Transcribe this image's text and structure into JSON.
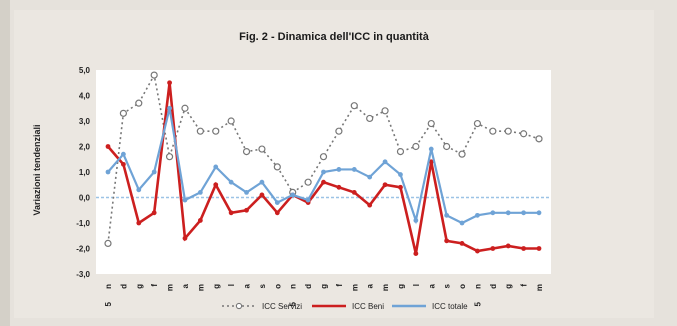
{
  "chart_data": {
    "type": "line",
    "title": "Fig. 2 - Dinamica dell'ICC in quantità",
    "ylabel": "Variazioni tendenziali",
    "xlabel": "",
    "ylim": [
      -3.0,
      5.0
    ],
    "yticks": [
      "-3,0",
      "-2,0",
      "-1,0",
      "0,0",
      "1,0",
      "2,0",
      "3,0",
      "4,0",
      "5,0"
    ],
    "ytick_values": [
      -3,
      -2,
      -1,
      0,
      1,
      2,
      3,
      4,
      5
    ],
    "categories": [
      "n",
      "d",
      "g",
      "f",
      "m",
      "a",
      "m",
      "g",
      "l",
      "a",
      "s",
      "o",
      "n",
      "d",
      "g",
      "f",
      "m",
      "a",
      "m",
      "g",
      "l",
      "a",
      "s",
      "o",
      "n",
      "d",
      "g",
      "f",
      "m"
    ],
    "year_marks": [
      {
        "index": 0,
        "label": "5"
      },
      {
        "index": 12,
        "label": "5"
      },
      {
        "index": 24,
        "label": "5"
      }
    ],
    "grid": false,
    "legend_position": "bottom",
    "series": [
      {
        "name": "ICC Servizi",
        "color": "#777777",
        "style": "dotted",
        "values": [
          -1.8,
          3.3,
          3.7,
          4.8,
          1.6,
          3.5,
          2.6,
          2.6,
          3.0,
          1.8,
          1.9,
          1.2,
          0.2,
          0.6,
          1.6,
          2.6,
          3.6,
          3.1,
          3.4,
          1.8,
          2.0,
          2.9,
          2.0,
          1.7,
          2.9,
          2.6,
          2.6,
          2.5,
          2.3
        ]
      },
      {
        "name": "ICC Beni",
        "color": "#cc1f1f",
        "style": "solid",
        "values": [
          2.0,
          1.3,
          -1.0,
          -0.6,
          4.5,
          -1.6,
          -0.9,
          0.5,
          -0.6,
          -0.5,
          0.1,
          -0.6,
          0.1,
          -0.2,
          0.6,
          0.4,
          0.2,
          -0.3,
          0.5,
          0.4,
          -2.2,
          1.4,
          -1.7,
          -1.8,
          -2.1,
          -2.0,
          -1.9,
          -2.0,
          -2.0
        ]
      },
      {
        "name": "ICC totale",
        "color": "#6fa3d6",
        "style": "solid",
        "values": [
          1.0,
          1.7,
          0.3,
          1.0,
          3.5,
          -0.1,
          0.2,
          1.2,
          0.6,
          0.2,
          0.6,
          -0.2,
          0.1,
          -0.1,
          1.0,
          1.1,
          1.1,
          0.8,
          1.4,
          0.9,
          -0.9,
          1.9,
          -0.7,
          -1.0,
          -0.7,
          -0.6,
          -0.6,
          -0.6,
          -0.6
        ]
      }
    ],
    "legend": [
      "ICC Servizi",
      "ICC Beni",
      "ICC totale"
    ]
  },
  "colors": {
    "background": "#ebe7e1",
    "plot_area": "#ffffff",
    "zero_line": "#9cc3e6"
  }
}
